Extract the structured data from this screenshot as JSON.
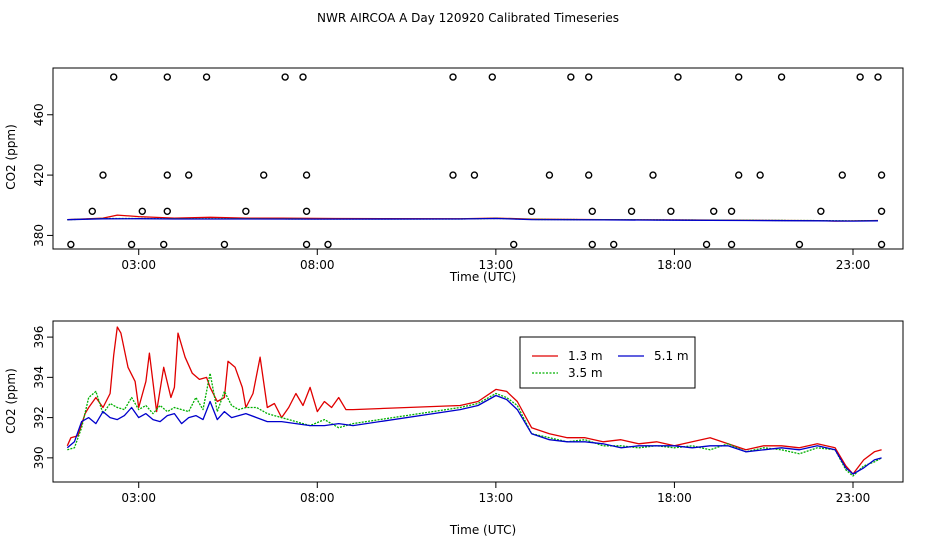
{
  "chart_data": [
    {
      "type": "scatter+line",
      "title": "NWR AIRCOA A  Day 120920  Calibrated Timeseries",
      "xlabel": "Time (UTC)",
      "ylabel": "CO2 (ppm)",
      "xlim": [
        0.6,
        24.4
      ],
      "ylim": [
        371,
        491
      ],
      "xticks": [
        3,
        8,
        13,
        18,
        23
      ],
      "xtick_labels": [
        "03:00",
        "08:00",
        "13:00",
        "18:00",
        "23:00"
      ],
      "yticks": [
        380,
        420,
        460
      ],
      "ytick_labels": [
        "380",
        "420",
        "460"
      ],
      "outlier_points": [
        [
          1.1,
          374
        ],
        [
          1.7,
          396
        ],
        [
          2.3,
          485
        ],
        [
          2.0,
          420
        ],
        [
          2.8,
          374
        ],
        [
          3.1,
          396
        ],
        [
          3.7,
          374
        ],
        [
          3.8,
          396
        ],
        [
          3.8,
          420
        ],
        [
          3.8,
          485
        ],
        [
          4.4,
          420
        ],
        [
          4.9,
          485
        ],
        [
          5.4,
          374
        ],
        [
          6.0,
          396
        ],
        [
          6.5,
          420
        ],
        [
          7.1,
          485
        ],
        [
          7.6,
          485
        ],
        [
          7.7,
          420
        ],
        [
          7.7,
          396
        ],
        [
          7.7,
          374
        ],
        [
          8.3,
          374
        ],
        [
          11.8,
          485
        ],
        [
          11.8,
          420
        ],
        [
          12.4,
          420
        ],
        [
          12.9,
          485
        ],
        [
          13.5,
          374
        ],
        [
          14.0,
          396
        ],
        [
          14.5,
          420
        ],
        [
          15.1,
          485
        ],
        [
          15.6,
          485
        ],
        [
          15.6,
          420
        ],
        [
          15.7,
          396
        ],
        [
          15.7,
          374
        ],
        [
          16.3,
          374
        ],
        [
          16.8,
          396
        ],
        [
          17.4,
          420
        ],
        [
          17.9,
          396
        ],
        [
          18.1,
          485
        ],
        [
          18.9,
          374
        ],
        [
          19.1,
          396
        ],
        [
          19.6,
          396
        ],
        [
          19.6,
          374
        ],
        [
          19.8,
          485
        ],
        [
          19.8,
          420
        ],
        [
          20.4,
          420
        ],
        [
          21.0,
          485
        ],
        [
          21.5,
          374
        ],
        [
          22.1,
          396
        ],
        [
          22.7,
          420
        ],
        [
          23.2,
          485
        ],
        [
          23.7,
          485
        ],
        [
          23.8,
          420
        ],
        [
          23.8,
          396
        ],
        [
          23.8,
          374
        ]
      ],
      "series": [
        {
          "name": "1.3 m",
          "color": "#e00000",
          "x": [
            1.0,
            2.0,
            2.4,
            3.0,
            4.0,
            5.0,
            6.0,
            7.0,
            8.5,
            12.0,
            13.0,
            14.0,
            16.0,
            18.0,
            20.0,
            22.0,
            22.5,
            23.0,
            23.7
          ],
          "values": [
            390.5,
            391.5,
            393.5,
            392.5,
            391.5,
            392.0,
            391.5,
            391.5,
            391.2,
            391.0,
            391.5,
            390.8,
            390.5,
            390.3,
            390.0,
            389.8,
            389.5,
            389.6,
            389.9
          ]
        },
        {
          "name": "3.5 m",
          "color": "#00b000",
          "x": [
            1.0,
            2.0,
            3.0,
            4.0,
            6.0,
            8.0,
            12.0,
            13.0,
            14.0,
            16.0,
            18.0,
            20.0,
            22.0,
            23.0,
            23.7
          ],
          "values": [
            390.4,
            391.2,
            391.2,
            391.0,
            391.0,
            390.9,
            390.9,
            391.3,
            390.6,
            390.4,
            390.2,
            390.0,
            389.8,
            389.6,
            389.8
          ]
        },
        {
          "name": "5.1 m",
          "color": "#0000cc",
          "x": [
            1.0,
            2.0,
            3.0,
            4.0,
            6.0,
            8.0,
            12.0,
            13.0,
            14.0,
            16.0,
            18.0,
            20.0,
            22.0,
            23.0,
            23.7
          ],
          "values": [
            390.4,
            391.0,
            391.1,
            390.9,
            390.9,
            390.8,
            390.9,
            391.2,
            390.5,
            390.3,
            390.1,
            389.9,
            389.7,
            389.5,
            389.7
          ]
        }
      ]
    },
    {
      "type": "line",
      "title": "",
      "xlabel": "Time (UTC)",
      "ylabel": "CO2 (ppm)",
      "xlim": [
        0.6,
        24.4
      ],
      "ylim": [
        388.8,
        396.8
      ],
      "xticks": [
        3,
        8,
        13,
        18,
        23
      ],
      "xtick_labels": [
        "03:00",
        "08:00",
        "13:00",
        "18:00",
        "23:00"
      ],
      "yticks": [
        390,
        392,
        394,
        396
      ],
      "ytick_labels": [
        "390",
        "392",
        "394",
        "396"
      ],
      "legend_position": "top-center",
      "series": [
        {
          "name": "1.3 m",
          "color": "#e00000",
          "x": [
            1.0,
            1.1,
            1.3,
            1.5,
            1.6,
            1.8,
            2.0,
            2.2,
            2.3,
            2.4,
            2.5,
            2.7,
            2.9,
            3.0,
            3.2,
            3.3,
            3.5,
            3.7,
            3.9,
            4.0,
            4.1,
            4.3,
            4.5,
            4.7,
            4.9,
            5.0,
            5.2,
            5.4,
            5.5,
            5.7,
            5.9,
            6.0,
            6.2,
            6.4,
            6.6,
            6.8,
            7.0,
            7.2,
            7.4,
            7.6,
            7.8,
            8.0,
            8.2,
            8.4,
            8.6,
            8.8,
            9.0,
            12.0,
            12.5,
            13.0,
            13.3,
            13.6,
            14.0,
            14.5,
            15.0,
            15.5,
            16.0,
            16.5,
            17.0,
            17.5,
            18.0,
            18.5,
            19.0,
            19.5,
            20.0,
            20.5,
            21.0,
            21.5,
            22.0,
            22.5,
            22.8,
            23.0,
            23.3,
            23.6,
            23.8
          ],
          "values": [
            390.6,
            391.0,
            391.1,
            392.2,
            392.5,
            393.0,
            392.5,
            393.2,
            395.1,
            396.5,
            396.2,
            394.5,
            393.8,
            392.5,
            393.8,
            395.2,
            392.3,
            394.5,
            393.0,
            393.5,
            396.2,
            395.0,
            394.2,
            393.9,
            394.0,
            393.5,
            392.8,
            393.0,
            394.8,
            394.5,
            393.5,
            392.5,
            393.2,
            395.0,
            392.5,
            392.7,
            392.0,
            392.5,
            393.2,
            392.6,
            393.5,
            392.3,
            392.8,
            392.5,
            393.0,
            392.4,
            392.4,
            392.6,
            392.8,
            393.4,
            393.3,
            392.8,
            391.5,
            391.2,
            391.0,
            391.0,
            390.8,
            390.9,
            390.7,
            390.8,
            390.6,
            390.8,
            391.0,
            390.7,
            390.4,
            390.6,
            390.6,
            390.5,
            390.7,
            390.5,
            389.6,
            389.2,
            389.9,
            390.3,
            390.4
          ]
        },
        {
          "name": "3.5 m",
          "color": "#00b000",
          "x": [
            1.0,
            1.2,
            1.4,
            1.6,
            1.8,
            2.0,
            2.2,
            2.4,
            2.6,
            2.8,
            3.0,
            3.2,
            3.4,
            3.6,
            3.8,
            4.0,
            4.2,
            4.4,
            4.6,
            4.8,
            5.0,
            5.2,
            5.4,
            5.6,
            5.8,
            6.0,
            6.3,
            6.6,
            7.0,
            7.4,
            7.8,
            8.2,
            8.6,
            9.0,
            12.0,
            12.5,
            13.0,
            13.3,
            13.6,
            14.0,
            14.5,
            15.0,
            15.5,
            16.0,
            16.5,
            17.0,
            17.5,
            18.0,
            18.5,
            19.0,
            19.5,
            20.0,
            20.5,
            21.0,
            21.5,
            22.0,
            22.5,
            22.8,
            23.0,
            23.3,
            23.6,
            23.8
          ],
          "values": [
            390.4,
            390.5,
            391.5,
            393.0,
            393.3,
            392.2,
            392.7,
            392.5,
            392.4,
            393.0,
            392.4,
            392.6,
            392.2,
            392.6,
            392.3,
            392.5,
            392.4,
            392.3,
            393.0,
            392.4,
            394.2,
            392.3,
            393.3,
            392.6,
            392.4,
            392.5,
            392.5,
            392.2,
            392.0,
            391.8,
            391.6,
            391.9,
            391.5,
            391.7,
            392.5,
            392.7,
            393.2,
            393.0,
            392.6,
            391.2,
            391.0,
            390.8,
            390.9,
            390.6,
            390.6,
            390.5,
            390.6,
            390.5,
            390.6,
            390.4,
            390.7,
            390.3,
            390.5,
            390.4,
            390.2,
            390.5,
            390.4,
            389.4,
            389.1,
            389.6,
            389.8,
            390.0
          ]
        },
        {
          "name": "5.1 m",
          "color": "#0000cc",
          "x": [
            1.0,
            1.2,
            1.4,
            1.6,
            1.8,
            2.0,
            2.2,
            2.4,
            2.6,
            2.8,
            3.0,
            3.2,
            3.4,
            3.6,
            3.8,
            4.0,
            4.2,
            4.4,
            4.6,
            4.8,
            5.0,
            5.2,
            5.4,
            5.6,
            5.8,
            6.0,
            6.3,
            6.6,
            7.0,
            7.4,
            7.8,
            8.2,
            8.6,
            9.0,
            12.0,
            12.5,
            13.0,
            13.3,
            13.6,
            14.0,
            14.5,
            15.0,
            15.5,
            16.0,
            16.5,
            17.0,
            17.5,
            18.0,
            18.5,
            19.0,
            19.5,
            20.0,
            20.5,
            21.0,
            21.5,
            22.0,
            22.5,
            22.8,
            23.0,
            23.3,
            23.6,
            23.8
          ],
          "values": [
            390.5,
            390.8,
            391.8,
            392.0,
            391.7,
            392.3,
            392.0,
            391.9,
            392.1,
            392.5,
            392.0,
            392.2,
            391.9,
            391.8,
            392.1,
            392.2,
            391.7,
            392.0,
            392.1,
            391.9,
            392.8,
            391.9,
            392.3,
            392.0,
            392.1,
            392.2,
            392.0,
            391.8,
            391.8,
            391.7,
            391.6,
            391.6,
            391.7,
            391.6,
            392.4,
            392.6,
            393.1,
            392.9,
            392.4,
            391.2,
            390.9,
            390.8,
            390.8,
            390.7,
            390.5,
            390.6,
            390.6,
            390.6,
            390.5,
            390.6,
            390.6,
            390.3,
            390.4,
            390.5,
            390.4,
            390.6,
            390.4,
            389.5,
            389.2,
            389.5,
            389.9,
            390.0
          ]
        }
      ]
    }
  ]
}
